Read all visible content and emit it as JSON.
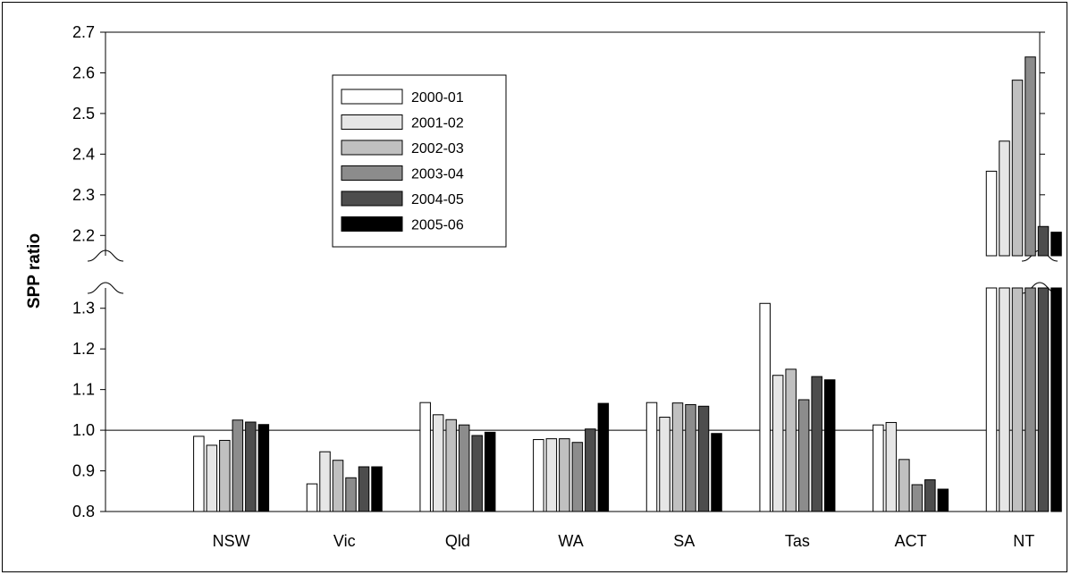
{
  "chart_data": {
    "type": "bar",
    "ylabel": "SPP ratio",
    "categories": [
      "NSW",
      "Vic",
      "Qld",
      "WA",
      "SA",
      "Tas",
      "ACT",
      "NT"
    ],
    "series": [
      {
        "name": "2000-01",
        "color": "#ffffff",
        "values": [
          0.985,
          0.868,
          1.068,
          0.977,
          1.068,
          1.312,
          1.013,
          2.358
        ]
      },
      {
        "name": "2001-02",
        "color": "#e6e6e6",
        "values": [
          0.963,
          0.947,
          1.038,
          0.979,
          1.032,
          1.135,
          1.019,
          2.432
        ]
      },
      {
        "name": "2002-03",
        "color": "#c0c0c0",
        "values": [
          0.975,
          0.926,
          1.026,
          0.979,
          1.067,
          1.15,
          0.928,
          2.582
        ]
      },
      {
        "name": "2003-04",
        "color": "#8c8c8c",
        "values": [
          1.025,
          0.883,
          1.013,
          0.97,
          1.063,
          1.075,
          0.866,
          2.639
        ]
      },
      {
        "name": "2004-05",
        "color": "#4d4d4d",
        "values": [
          1.02,
          0.91,
          0.987,
          1.003,
          1.059,
          1.132,
          0.878,
          2.222
        ]
      },
      {
        "name": "2005-06",
        "color": "#000000",
        "values": [
          1.014,
          0.91,
          0.995,
          1.066,
          0.992,
          1.124,
          0.855,
          2.208
        ]
      }
    ],
    "lower_axis": {
      "ylim": [
        0.8,
        1.35
      ],
      "ticks": [
        "0.8",
        "0.9",
        "1.0",
        "1.1",
        "1.2",
        "1.3"
      ]
    },
    "upper_axis": {
      "ylim": [
        2.15,
        2.7
      ],
      "ticks": [
        "2.2",
        "2.3",
        "2.4",
        "2.5",
        "2.6",
        "2.7"
      ]
    },
    "reference_line": 1.0,
    "axis_break": true,
    "legend_position": "top-left-inside",
    "grid": false
  }
}
